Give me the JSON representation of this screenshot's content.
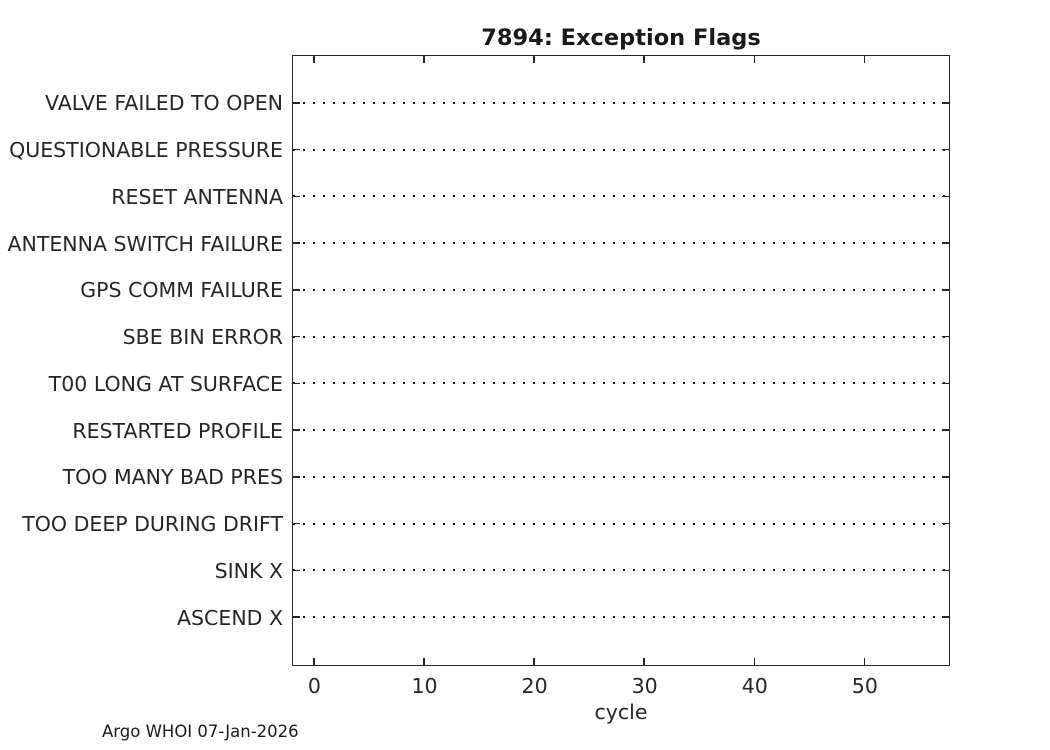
{
  "title": "7894: Exception Flags",
  "footer": "Argo WHOI 07-Jan-2026",
  "colors": {
    "background": "#ffffff",
    "axis": "#262626",
    "text": "#262626",
    "grid_dot": "#111111"
  },
  "chart_data": {
    "type": "scatter",
    "title": "7894: Exception Flags",
    "xlabel": "cycle",
    "ylabel": "",
    "categories": [
      "VALVE FAILED TO OPEN",
      "QUESTIONABLE PRESSURE",
      "RESET ANTENNA",
      "ANTENNA SWITCH FAILURE",
      "GPS COMM FAILURE",
      "SBE BIN ERROR",
      "T00 LONG AT SURFACE",
      "RESTARTED PROFILE",
      "TOO MANY BAD PRES",
      "TOO DEEP DURING DRIFT",
      "SINK X",
      "ASCEND X"
    ],
    "x_ticks": [
      0,
      10,
      20,
      30,
      40,
      50
    ],
    "xlim": [
      -1.9,
      57.6
    ],
    "series": [],
    "points": [],
    "grid": "horizontal dotted line per category, ticks inward on all four box edges",
    "legend": "none",
    "notes": "No exception flag events are plotted; every category row is an empty dotted line."
  }
}
